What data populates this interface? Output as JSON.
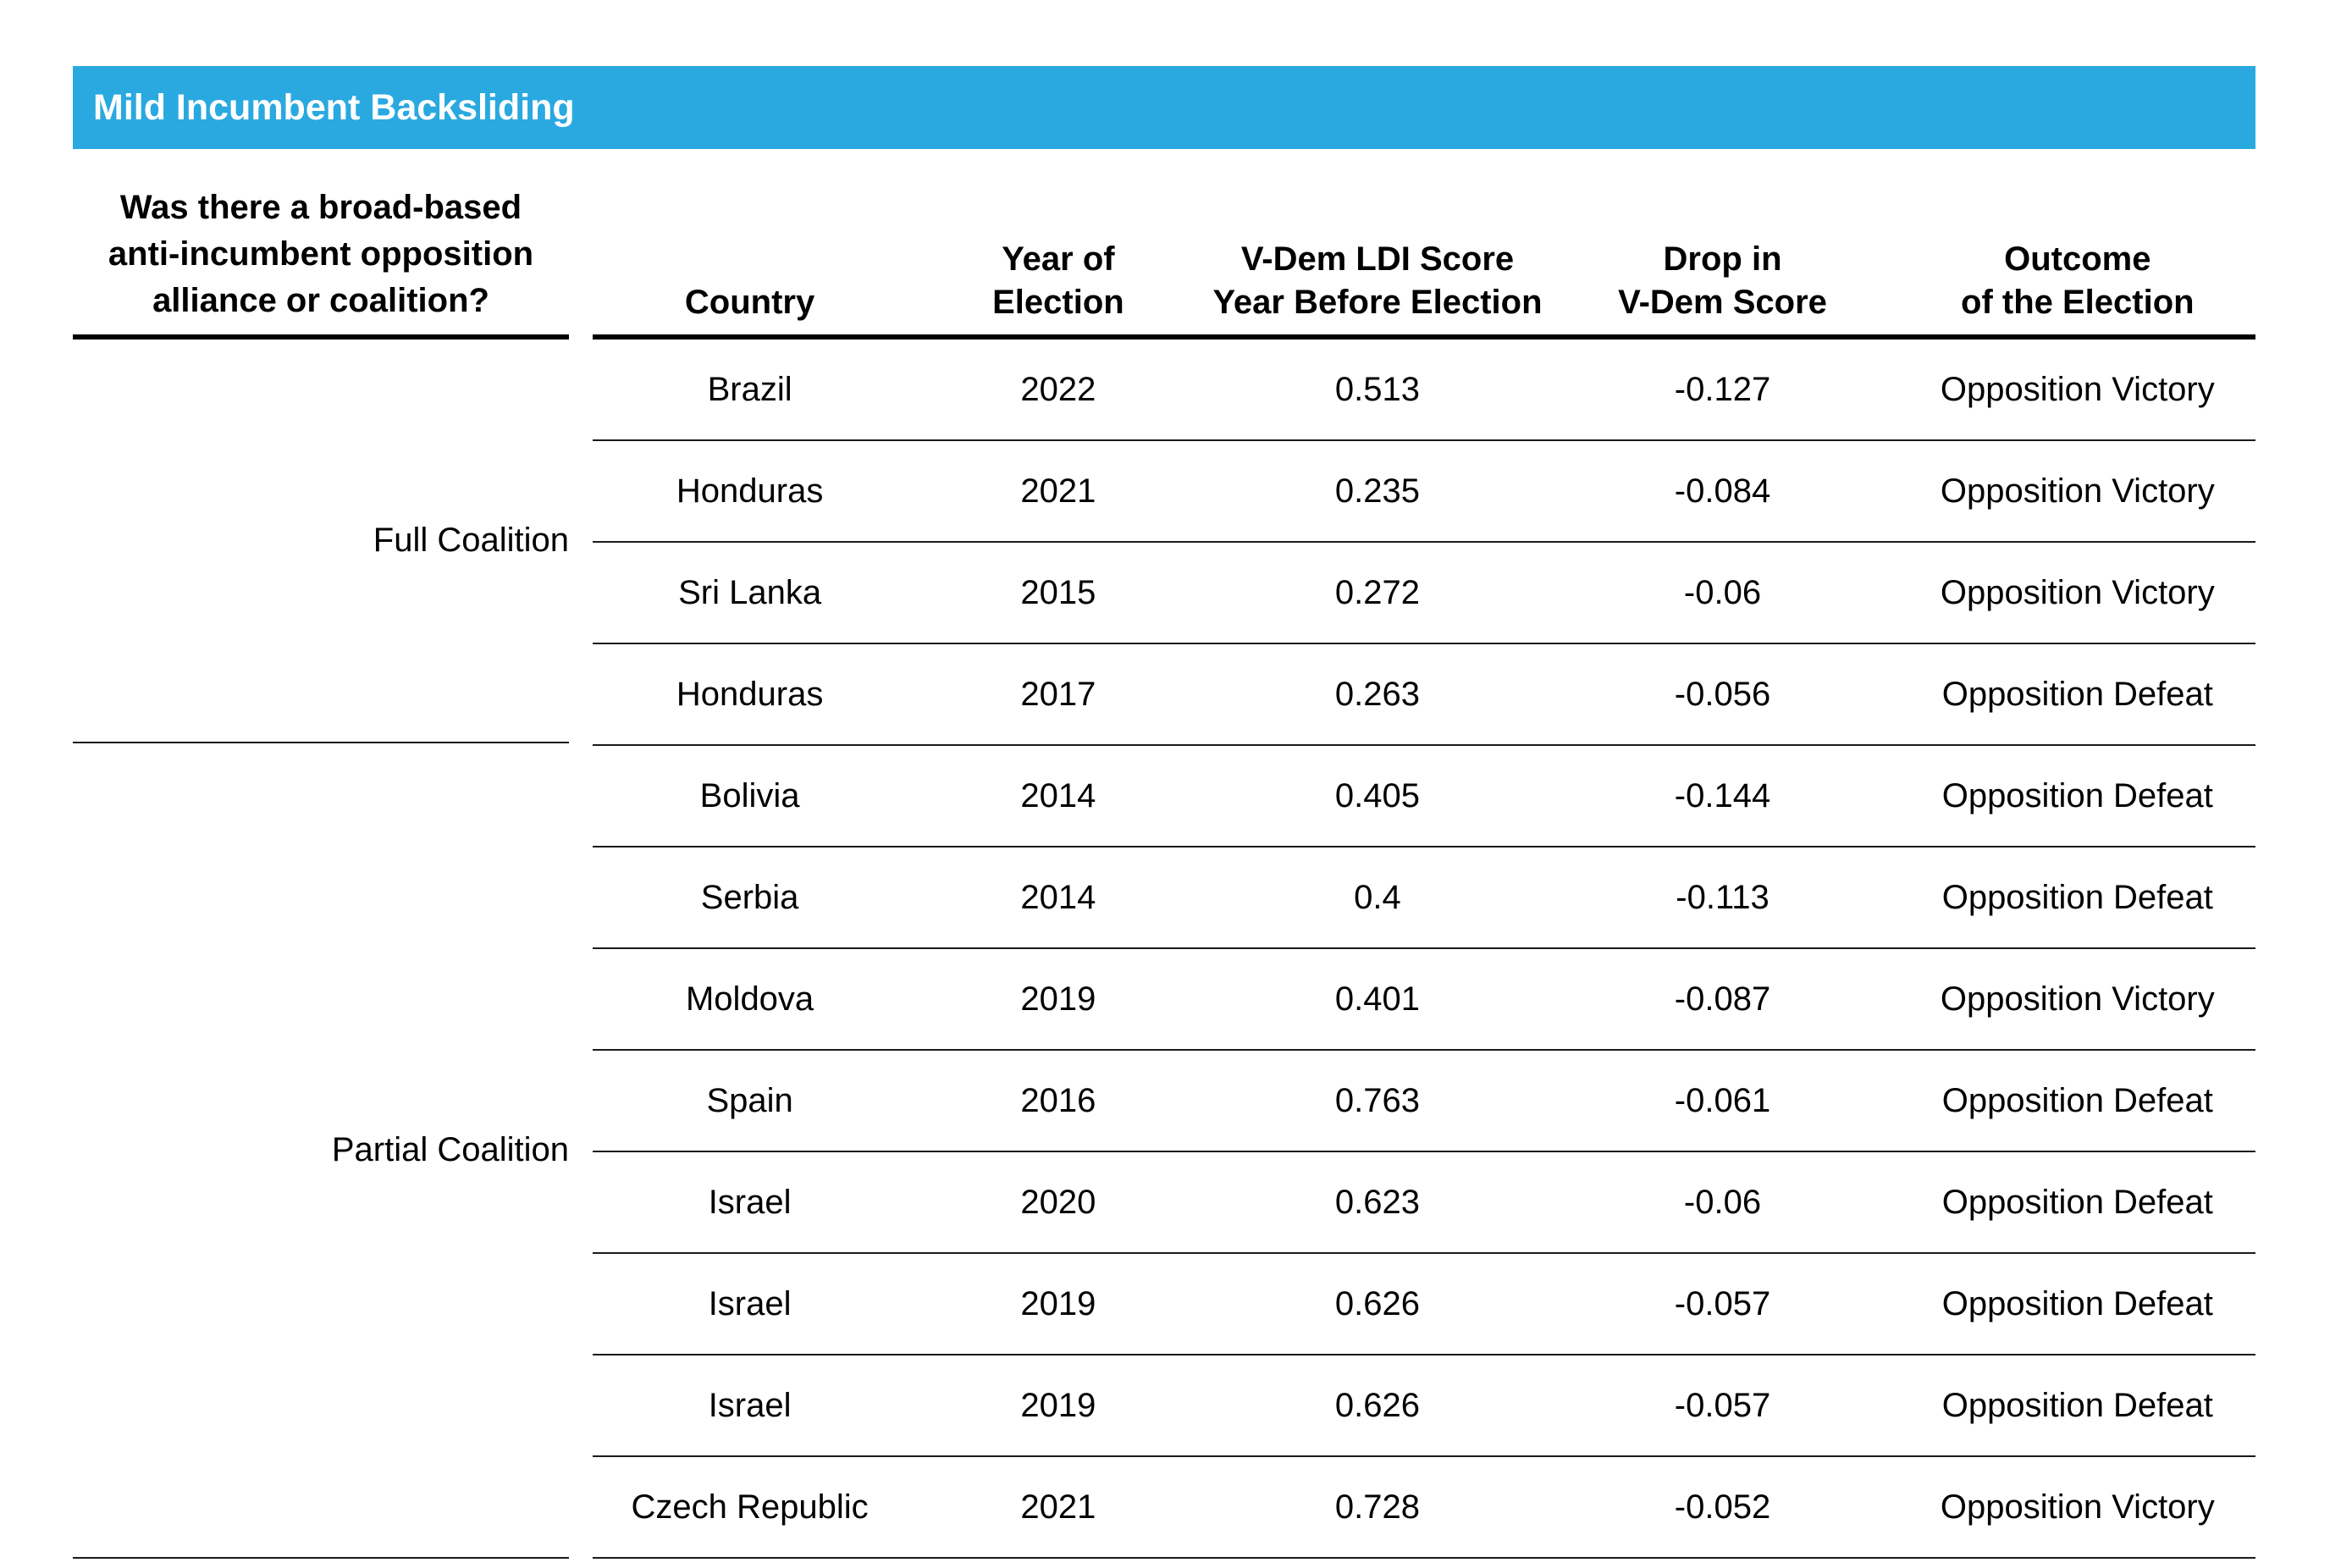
{
  "title_bar": {
    "label": "Mild Incumbent Backsliding",
    "background_color": "#29A9E0",
    "text_color": "#FFFFFF"
  },
  "table": {
    "question_header_lines": [
      "Was there a broad-based",
      "anti-incumbent opposition",
      "alliance or coalition?"
    ],
    "columns": [
      {
        "id": "country",
        "header_lines": [
          "Country"
        ]
      },
      {
        "id": "year",
        "header_lines": [
          "Year of",
          "Election"
        ]
      },
      {
        "id": "ldi",
        "header_lines": [
          "V-Dem LDI Score",
          "Year Before Election"
        ]
      },
      {
        "id": "drop",
        "header_lines": [
          "Drop in",
          "V-Dem Score"
        ]
      },
      {
        "id": "outcome",
        "header_lines": [
          "Outcome",
          "of the Election"
        ]
      }
    ],
    "groups": [
      {
        "label": "Full Coalition",
        "rows": [
          {
            "country": "Brazil",
            "year": "2022",
            "ldi": "0.513",
            "drop": "-0.127",
            "outcome": "Opposition Victory"
          },
          {
            "country": "Honduras",
            "year": "2021",
            "ldi": "0.235",
            "drop": "-0.084",
            "outcome": "Opposition Victory"
          },
          {
            "country": "Sri Lanka",
            "year": "2015",
            "ldi": "0.272",
            "drop": "-0.06",
            "outcome": "Opposition Victory"
          },
          {
            "country": "Honduras",
            "year": "2017",
            "ldi": "0.263",
            "drop": "-0.056",
            "outcome": "Opposition Defeat"
          }
        ]
      },
      {
        "label": "Partial Coalition",
        "rows": [
          {
            "country": "Bolivia",
            "year": "2014",
            "ldi": "0.405",
            "drop": "-0.144",
            "outcome": "Opposition Defeat"
          },
          {
            "country": "Serbia",
            "year": "2014",
            "ldi": "0.4",
            "drop": "-0.113",
            "outcome": "Opposition Defeat"
          },
          {
            "country": "Moldova",
            "year": "2019",
            "ldi": "0.401",
            "drop": "-0.087",
            "outcome": "Opposition Victory"
          },
          {
            "country": "Spain",
            "year": "2016",
            "ldi": "0.763",
            "drop": "-0.061",
            "outcome": "Opposition Defeat"
          },
          {
            "country": "Israel",
            "year": "2020",
            "ldi": "0.623",
            "drop": "-0.06",
            "outcome": "Opposition Defeat"
          },
          {
            "country": "Israel",
            "year": "2019",
            "ldi": "0.626",
            "drop": "-0.057",
            "outcome": "Opposition Defeat"
          },
          {
            "country": "Israel",
            "year": "2019",
            "ldi": "0.626",
            "drop": "-0.057",
            "outcome": "Opposition Defeat"
          },
          {
            "country": "Czech Republic",
            "year": "2021",
            "ldi": "0.728",
            "drop": "-0.052",
            "outcome": "Opposition Victory"
          }
        ]
      }
    ]
  }
}
